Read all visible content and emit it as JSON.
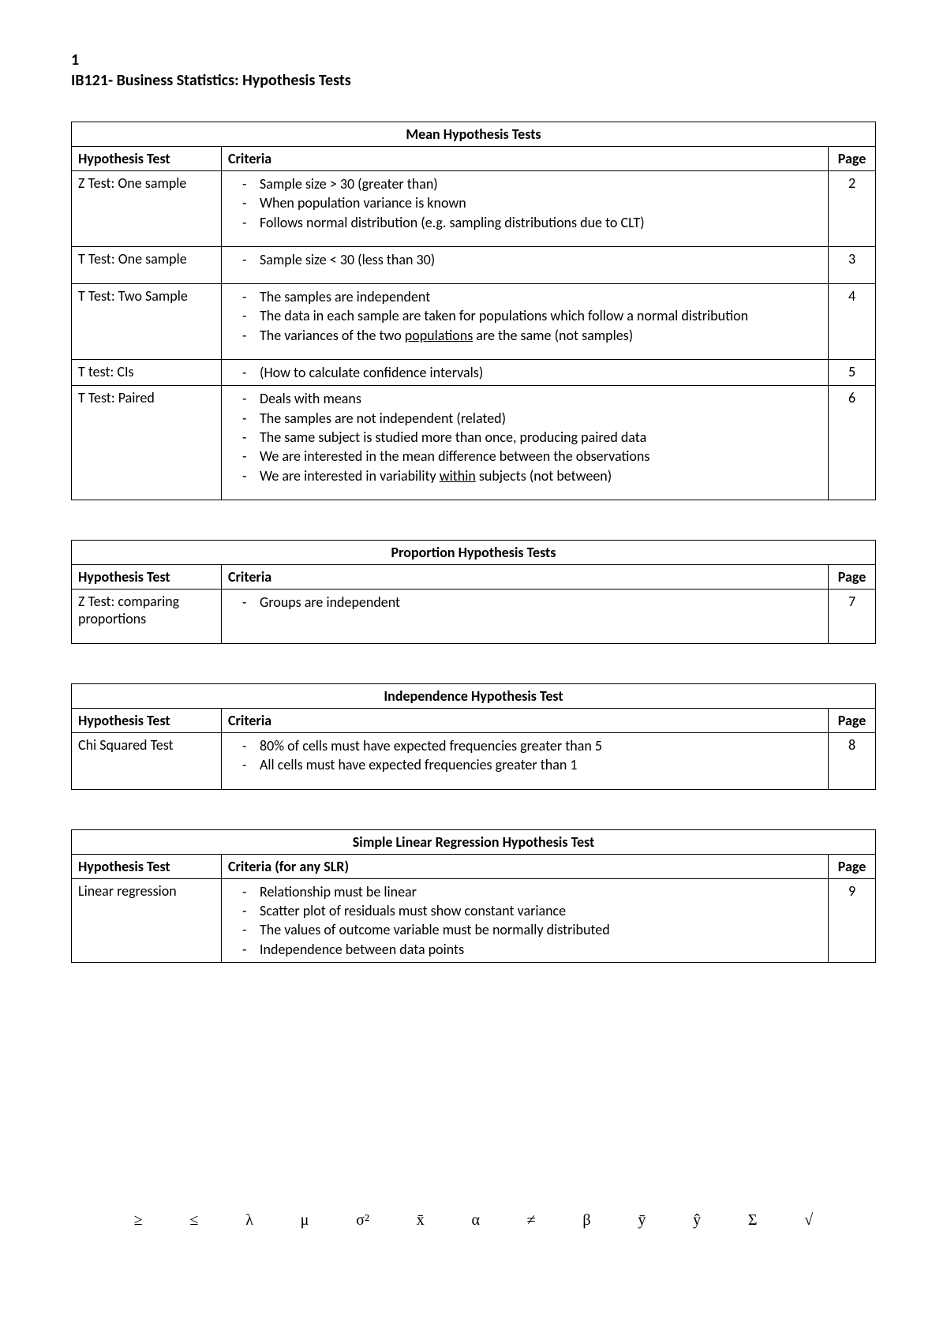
{
  "header": {
    "page_num": "1",
    "title": "IB121- Business Statistics: Hypothesis Tests"
  },
  "tables": [
    {
      "title": "Mean Hypothesis Tests",
      "columns": [
        "Hypothesis Test",
        "Criteria",
        "Page"
      ],
      "rows": [
        {
          "test": "Z Test: One sample",
          "criteria": [
            "Sample size > 30 (greater than)",
            "When population variance is known",
            "Follows normal distribution (e.g. sampling distributions due to CLT)"
          ],
          "page": "2"
        },
        {
          "test": "T Test: One sample",
          "criteria": [
            "Sample size < 30 (less than 30)"
          ],
          "page": "3"
        },
        {
          "test": "T Test: Two Sample",
          "criteria": [
            "The samples are independent",
            "The data in each sample are taken for populations which follow a normal distribution",
            "The variances of the two <u>populations</u> are the same (not samples)"
          ],
          "page": "4"
        },
        {
          "test": "T test: CIs",
          "criteria": [
            "(How to calculate confidence intervals)"
          ],
          "page": "5",
          "tight": true
        },
        {
          "test": "T Test: Paired",
          "criteria": [
            "Deals with means",
            "The samples are not independent (related)",
            "The same subject is studied more than once, producing paired data",
            "We are interested in the mean difference between the observations",
            "We are interested in variability <u>within</u> subjects (not between)"
          ],
          "page": "6"
        }
      ]
    },
    {
      "title": "Proportion Hypothesis Tests",
      "columns": [
        "Hypothesis Test",
        "Criteria",
        "Page"
      ],
      "rows": [
        {
          "test": "Z Test: comparing proportions",
          "criteria": [
            "Groups are independent"
          ],
          "page": "7",
          "extra_pad": true
        }
      ]
    },
    {
      "title": "Independence Hypothesis Test",
      "columns": [
        "Hypothesis Test",
        "Criteria",
        "Page"
      ],
      "rows": [
        {
          "test": "Chi Squared Test",
          "criteria": [
            "80% of cells must have expected frequencies greater than 5",
            "All cells must have expected frequencies greater than 1"
          ],
          "page": "8"
        }
      ]
    },
    {
      "title": "Simple Linear Regression Hypothesis Test",
      "columns": [
        "Hypothesis Test",
        "Criteria (for any SLR)",
        "Page"
      ],
      "rows": [
        {
          "test": "Linear regression",
          "criteria": [
            "Relationship must be linear",
            "Scatter plot of residuals must show constant variance",
            "The values of outcome variable must be normally distributed",
            "Independence between data points"
          ],
          "page": "9",
          "tight": true
        }
      ]
    }
  ],
  "symbols": [
    "≥",
    "≤",
    "λ",
    "μ",
    "σ²",
    "x̄",
    "α",
    "≠",
    "β",
    "ȳ",
    "ŷ",
    "Σ",
    "√"
  ]
}
